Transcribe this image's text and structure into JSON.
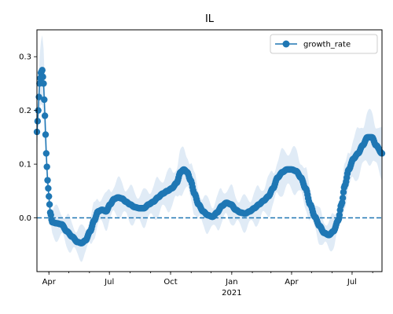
{
  "chart_data": {
    "type": "line",
    "title": "IL",
    "xlabel": "",
    "ylabel": "",
    "x_axis": {
      "type": "date",
      "range": [
        "2020-03-14",
        "2021-08-15"
      ],
      "tick_labels": [
        {
          "date": "2020-04-01",
          "text": "Apr"
        },
        {
          "date": "2020-07-01",
          "text": "Jul"
        },
        {
          "date": "2020-10-01",
          "text": "Oct"
        },
        {
          "date": "2021-01-01",
          "text": "Jan"
        },
        {
          "date": "2021-04-01",
          "text": "Apr"
        },
        {
          "date": "2021-07-01",
          "text": "Jul"
        }
      ],
      "year_label": "2021"
    },
    "ylim": [
      -0.1,
      0.35
    ],
    "y_ticks": [
      {
        "value": 0.0,
        "text": "0.0"
      },
      {
        "value": 0.1,
        "text": "0.1"
      },
      {
        "value": 0.2,
        "text": "0.2"
      },
      {
        "value": 0.3,
        "text": "0.3"
      }
    ],
    "grid": false,
    "legend": {
      "placement": "top-right"
    },
    "reference_line": {
      "y": 0.0,
      "style": "dashed",
      "color": "#1f77b4"
    },
    "series": [
      {
        "name": "growth_rate",
        "color": "#1f77b4",
        "marker": "circle",
        "band_color": "#c6dbef",
        "points": [
          [
            "2020-03-14",
            0.16
          ],
          [
            "2020-03-16",
            0.2
          ],
          [
            "2020-03-18",
            0.25
          ],
          [
            "2020-03-20",
            0.27
          ],
          [
            "2020-03-22",
            0.275
          ],
          [
            "2020-03-24",
            0.25
          ],
          [
            "2020-03-26",
            0.19
          ],
          [
            "2020-03-28",
            0.12
          ],
          [
            "2020-03-30",
            0.07
          ],
          [
            "2020-04-01",
            0.04
          ],
          [
            "2020-04-03",
            0.01
          ],
          [
            "2020-04-06",
            -0.008
          ],
          [
            "2020-04-12",
            -0.01
          ],
          [
            "2020-04-20",
            -0.012
          ],
          [
            "2020-04-28",
            -0.025
          ],
          [
            "2020-05-06",
            -0.035
          ],
          [
            "2020-05-14",
            -0.045
          ],
          [
            "2020-05-20",
            -0.047
          ],
          [
            "2020-05-26",
            -0.042
          ],
          [
            "2020-06-02",
            -0.025
          ],
          [
            "2020-06-08",
            -0.005
          ],
          [
            "2020-06-14",
            0.012
          ],
          [
            "2020-06-20",
            0.015
          ],
          [
            "2020-06-26",
            0.012
          ],
          [
            "2020-07-02",
            0.025
          ],
          [
            "2020-07-08",
            0.035
          ],
          [
            "2020-07-14",
            0.038
          ],
          [
            "2020-07-20",
            0.036
          ],
          [
            "2020-07-26",
            0.03
          ],
          [
            "2020-08-01",
            0.025
          ],
          [
            "2020-08-08",
            0.02
          ],
          [
            "2020-08-15",
            0.018
          ],
          [
            "2020-08-22",
            0.018
          ],
          [
            "2020-08-29",
            0.025
          ],
          [
            "2020-09-05",
            0.03
          ],
          [
            "2020-09-12",
            0.038
          ],
          [
            "2020-09-19",
            0.045
          ],
          [
            "2020-09-26",
            0.05
          ],
          [
            "2020-10-03",
            0.055
          ],
          [
            "2020-10-10",
            0.065
          ],
          [
            "2020-10-16",
            0.085
          ],
          [
            "2020-10-21",
            0.09
          ],
          [
            "2020-10-26",
            0.085
          ],
          [
            "2020-10-31",
            0.07
          ],
          [
            "2020-11-06",
            0.045
          ],
          [
            "2020-11-12",
            0.025
          ],
          [
            "2020-11-19",
            0.012
          ],
          [
            "2020-11-26",
            0.005
          ],
          [
            "2020-12-03",
            0.002
          ],
          [
            "2020-12-10",
            0.01
          ],
          [
            "2020-12-17",
            0.022
          ],
          [
            "2020-12-24",
            0.028
          ],
          [
            "2020-12-31",
            0.025
          ],
          [
            "2021-01-07",
            0.015
          ],
          [
            "2021-01-14",
            0.01
          ],
          [
            "2021-01-21",
            0.008
          ],
          [
            "2021-01-28",
            0.012
          ],
          [
            "2021-02-04",
            0.018
          ],
          [
            "2021-02-11",
            0.025
          ],
          [
            "2021-02-18",
            0.032
          ],
          [
            "2021-02-25",
            0.04
          ],
          [
            "2021-03-04",
            0.055
          ],
          [
            "2021-03-11",
            0.075
          ],
          [
            "2021-03-18",
            0.085
          ],
          [
            "2021-03-25",
            0.09
          ],
          [
            "2021-04-01",
            0.09
          ],
          [
            "2021-04-08",
            0.087
          ],
          [
            "2021-04-15",
            0.075
          ],
          [
            "2021-04-22",
            0.055
          ],
          [
            "2021-04-29",
            0.025
          ],
          [
            "2021-05-06",
            0.002
          ],
          [
            "2021-05-13",
            -0.015
          ],
          [
            "2021-05-20",
            -0.028
          ],
          [
            "2021-05-27",
            -0.032
          ],
          [
            "2021-06-03",
            -0.025
          ],
          [
            "2021-06-10",
            -0.005
          ],
          [
            "2021-06-15",
            0.025
          ],
          [
            "2021-06-20",
            0.06
          ],
          [
            "2021-06-26",
            0.09
          ],
          [
            "2021-07-03",
            0.11
          ],
          [
            "2021-07-10",
            0.12
          ],
          [
            "2021-07-17",
            0.135
          ],
          [
            "2021-07-24",
            0.15
          ],
          [
            "2021-07-31",
            0.15
          ],
          [
            "2021-08-06",
            0.135
          ],
          [
            "2021-08-15",
            0.12
          ]
        ]
      }
    ]
  }
}
